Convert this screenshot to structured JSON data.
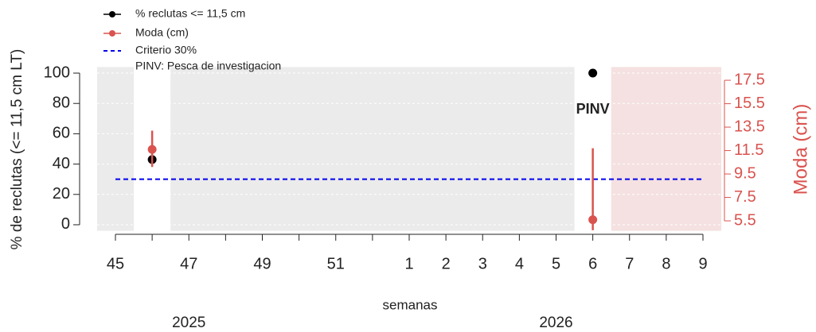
{
  "chart_data": {
    "type": "point-errorbar",
    "categories": [
      45,
      null,
      47,
      null,
      49,
      null,
      51,
      null,
      1,
      2,
      3,
      4,
      5,
      6,
      7,
      8,
      9
    ],
    "x_label": "semanas",
    "y_label": "% de reclutas (<= 11,5 cm LT)",
    "y2_label": "Moda (cm)",
    "ylim": [
      -4,
      104
    ],
    "yticks": [
      0,
      20,
      40,
      60,
      80,
      100
    ],
    "y2lim": [
      4.65,
      18.63
    ],
    "y2ticks": [
      5.5,
      7.5,
      9.5,
      11.5,
      13.5,
      15.5,
      17.5
    ],
    "y2_color": "#d9534f",
    "grid": true,
    "series": [
      {
        "name": "% reclutas <= 11,5 cm",
        "color": "#000000",
        "values": [
          null,
          43,
          null,
          null,
          null,
          null,
          null,
          null,
          null,
          null,
          null,
          null,
          null,
          100,
          null,
          null,
          null
        ]
      },
      {
        "name": "Moda (cm)",
        "color": "#d9534f",
        "axis": "y2",
        "values": [
          null,
          11.6,
          null,
          null,
          null,
          null,
          null,
          null,
          null,
          null,
          null,
          null,
          null,
          5.6,
          null,
          null,
          null
        ],
        "lower": [
          null,
          10.1,
          null,
          null,
          null,
          null,
          null,
          null,
          null,
          null,
          null,
          null,
          null,
          4.7,
          null,
          null,
          null
        ],
        "upper": [
          null,
          13.2,
          null,
          null,
          null,
          null,
          null,
          null,
          null,
          null,
          null,
          null,
          null,
          11.7,
          null,
          null,
          null
        ]
      }
    ],
    "threshold": {
      "name": "Criterio 30%",
      "value": 30,
      "color": "#0000ee"
    },
    "legend_note": "PINV: Pesca de investigacion",
    "legend": "top-left",
    "annotation": {
      "text": "PINV",
      "x": 6
    },
    "year_labels": [
      {
        "text": "2025",
        "x": 47
      },
      {
        "text": "2026",
        "x": 5
      }
    ],
    "shading": [
      {
        "from": 45,
        "to": 45,
        "color": "#ebebeb"
      },
      {
        "from": 47,
        "to": 5,
        "color": "#ebebeb"
      },
      {
        "from": 7,
        "to": 9,
        "color": "#f5e1e1"
      }
    ]
  }
}
